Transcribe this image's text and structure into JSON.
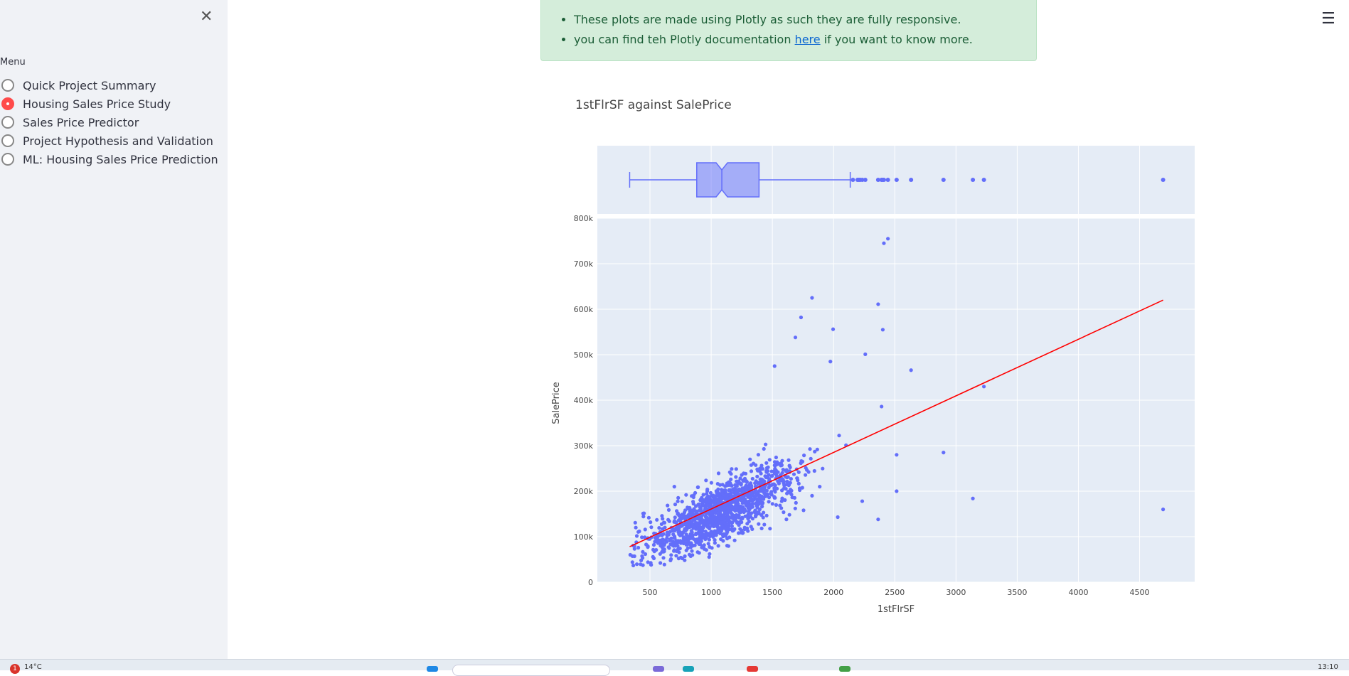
{
  "sidebar": {
    "close_symbol": "✕",
    "menu_label": "Menu",
    "items": [
      {
        "label": "Quick Project Summary",
        "selected": false
      },
      {
        "label": "Housing Sales Price Study",
        "selected": true
      },
      {
        "label": "Sales Price Predictor",
        "selected": false
      },
      {
        "label": "Project Hypothesis and Validation",
        "selected": false
      },
      {
        "label": "ML: Housing Sales Price Prediction",
        "selected": false
      }
    ]
  },
  "info_box": {
    "line1": "These plots are made using Plotly as such they are fully responsive.",
    "line2_before": "you can find teh Plotly documentation ",
    "line2_link": "here",
    "line2_after": " if you want to know more."
  },
  "header": {
    "menu_symbol": "☰"
  },
  "chart_title": "1stFlrSF against SalePrice",
  "taskbar": {
    "notification_count": "1",
    "temperature": "14°C",
    "time": "13:10"
  },
  "colors": {
    "accent": "#ff4b4b",
    "marker": "#636efa",
    "trend": "#ff0000",
    "plot_bg": "#e5ecf6",
    "info_bg": "#d4edda"
  },
  "chart_data": {
    "type": "scatter",
    "title": "1stFlrSF against SalePrice",
    "xlabel": "1stFlrSF",
    "ylabel": "SalePrice",
    "xlim": [
      70,
      4950
    ],
    "ylim": [
      0,
      800000
    ],
    "x_ticks": [
      500,
      1000,
      1500,
      2000,
      2500,
      3000,
      3500,
      4000,
      4500
    ],
    "y_ticks": [
      0,
      100000,
      200000,
      300000,
      400000,
      500000,
      600000,
      700000,
      800000
    ],
    "y_tick_labels": [
      "0",
      "100k",
      "200k",
      "300k",
      "400k",
      "500k",
      "600k",
      "700k",
      "800k"
    ],
    "marginal_box": {
      "min": 334,
      "q1": 882,
      "median": 1087,
      "q3": 1391,
      "upper_fence": 2136,
      "outliers": [
        2158,
        2196,
        2207,
        2217,
        2234,
        2259,
        2364,
        2392,
        2402,
        2411,
        2444,
        2515,
        2633,
        2898,
        3138,
        3228,
        4692
      ]
    },
    "trendline": {
      "x": [
        334,
        4692
      ],
      "y": [
        78000,
        620000
      ]
    },
    "outlier_points": [
      [
        2444,
        755000
      ],
      [
        2411,
        745000
      ],
      [
        1824,
        625000
      ],
      [
        2364,
        611000
      ],
      [
        1734,
        582000
      ],
      [
        1996,
        556000
      ],
      [
        2402,
        555000
      ],
      [
        1688,
        538000
      ],
      [
        2259,
        501000
      ],
      [
        1974,
        485000
      ],
      [
        1518,
        475000
      ],
      [
        2633,
        466000
      ],
      [
        3228,
        430000
      ],
      [
        2392,
        386000
      ],
      [
        2898,
        285000
      ],
      [
        2515,
        280000
      ],
      [
        3138,
        184000
      ],
      [
        4692,
        160000
      ],
      [
        2515,
        200000
      ],
      [
        2234,
        178000
      ],
      [
        2364,
        138000
      ],
      [
        2034,
        143000
      ],
      [
        1824,
        190000
      ],
      [
        1746,
        265000
      ]
    ],
    "cluster": {
      "n": 1350,
      "x_range": [
        334,
        2200
      ],
      "description": "dense cloud of points centred near (1050, 160k)"
    }
  }
}
